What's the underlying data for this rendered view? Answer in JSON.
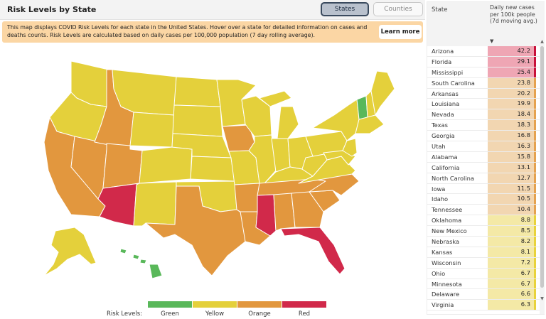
{
  "header": {
    "title": "Risk Levels by State",
    "toggle_states": "States",
    "toggle_counties": "Counties"
  },
  "banner": {
    "text": "This map displays COVID Risk Levels for each state in the United States. Hover over a state for detailed information on cases and deaths counts. Risk Levels are calculated based on daily cases per 100,000 population (7 day rolling average).",
    "button": "Learn more"
  },
  "legend": {
    "title": "Risk Levels:",
    "items": [
      {
        "label": "Green",
        "color": "#59b85a"
      },
      {
        "label": "Yellow",
        "color": "#e4d03b"
      },
      {
        "label": "Orange",
        "color": "#e2973e"
      },
      {
        "label": "Red",
        "color": "#d1294a"
      }
    ]
  },
  "colors": {
    "green": "#59b85a",
    "yellow": "#e4d03b",
    "orange": "#e2973e",
    "red": "#d1294a",
    "row_red": "#efa6b4",
    "row_red_end": "#c8103a",
    "row_orange": "#f2d6b1",
    "row_orange_end": "#e5a24f",
    "row_yellow": "#f4e9a6",
    "row_yellow_end": "#e8d23c"
  },
  "table": {
    "col_state": "State",
    "col_cases": "Daily new cases per 100k people (7d moving avg.)",
    "sort_icon": "sort-down-icon",
    "rows": [
      {
        "state": "Arizona",
        "value": "42.2",
        "level": "red"
      },
      {
        "state": "Florida",
        "value": "29.1",
        "level": "red"
      },
      {
        "state": "Mississippi",
        "value": "25.4",
        "level": "red"
      },
      {
        "state": "South Carolina",
        "value": "23.8",
        "level": "orange"
      },
      {
        "state": "Arkansas",
        "value": "20.2",
        "level": "orange"
      },
      {
        "state": "Louisiana",
        "value": "19.9",
        "level": "orange"
      },
      {
        "state": "Nevada",
        "value": "18.4",
        "level": "orange"
      },
      {
        "state": "Texas",
        "value": "18.3",
        "level": "orange"
      },
      {
        "state": "Georgia",
        "value": "16.8",
        "level": "orange"
      },
      {
        "state": "Utah",
        "value": "16.3",
        "level": "orange"
      },
      {
        "state": "Alabama",
        "value": "15.8",
        "level": "orange"
      },
      {
        "state": "California",
        "value": "13.1",
        "level": "orange"
      },
      {
        "state": "North Carolina",
        "value": "12.7",
        "level": "orange"
      },
      {
        "state": "Iowa",
        "value": "11.5",
        "level": "orange"
      },
      {
        "state": "Idaho",
        "value": "10.5",
        "level": "orange"
      },
      {
        "state": "Tennessee",
        "value": "10.4",
        "level": "orange"
      },
      {
        "state": "Oklahoma",
        "value": "8.8",
        "level": "yellow"
      },
      {
        "state": "New Mexico",
        "value": "8.5",
        "level": "yellow"
      },
      {
        "state": "Nebraska",
        "value": "8.2",
        "level": "yellow"
      },
      {
        "state": "Kansas",
        "value": "8.1",
        "level": "yellow"
      },
      {
        "state": "Wisconsin",
        "value": "7.2",
        "level": "yellow"
      },
      {
        "state": "Ohio",
        "value": "6.7",
        "level": "yellow"
      },
      {
        "state": "Minnesota",
        "value": "6.7",
        "level": "yellow"
      },
      {
        "state": "Delaware",
        "value": "6.6",
        "level": "yellow"
      },
      {
        "state": "Virginia",
        "value": "6.3",
        "level": "yellow"
      }
    ]
  }
}
